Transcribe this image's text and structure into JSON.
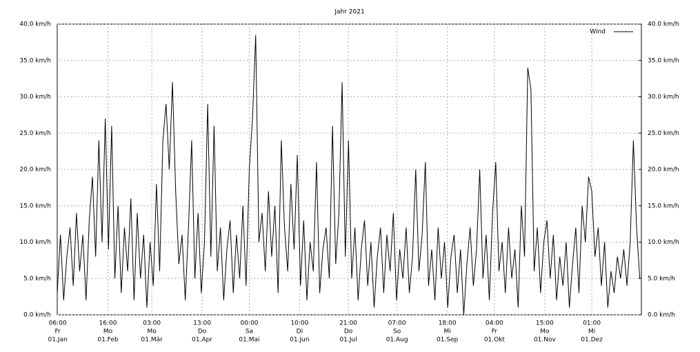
{
  "chart_data": {
    "type": "line",
    "title": "Jahr 2021",
    "series": [
      {
        "name": "Wind",
        "color": "#000000",
        "values": [
          3,
          11,
          2,
          8,
          12,
          4,
          14,
          6,
          11,
          2,
          13,
          19,
          8,
          24,
          10,
          27,
          9,
          26,
          5,
          15,
          3,
          12,
          6,
          16,
          2,
          14,
          5,
          11,
          1,
          10,
          4,
          18,
          6,
          24,
          29,
          20,
          32,
          17,
          7,
          11,
          2,
          12,
          24,
          5,
          14,
          3,
          10,
          29,
          8,
          26,
          6,
          12,
          2,
          9,
          13,
          3,
          11,
          5,
          15,
          4,
          20,
          27,
          38.5,
          10,
          14,
          6,
          17,
          8,
          15,
          3,
          24,
          12,
          6,
          18,
          9,
          22,
          4,
          13,
          2,
          10,
          6,
          21,
          3,
          9,
          12,
          5,
          26,
          7,
          14,
          32,
          8,
          24,
          5,
          12,
          2,
          9,
          13,
          4,
          10,
          1,
          8,
          12,
          3,
          11,
          6,
          14,
          2,
          9,
          5,
          12,
          3,
          8,
          20,
          6,
          11,
          21,
          4,
          9,
          2,
          12,
          5,
          10,
          1,
          8,
          11,
          3,
          9,
          0,
          7,
          12,
          4,
          9,
          20,
          5,
          11,
          2,
          14,
          21,
          6,
          10,
          3,
          12,
          5,
          9,
          1,
          15,
          8,
          34,
          31,
          6,
          12,
          3,
          10,
          13,
          5,
          11,
          2,
          8,
          4,
          10,
          1,
          7,
          12,
          3,
          15,
          10,
          19,
          17,
          8,
          12,
          4,
          10,
          1,
          6,
          3,
          8,
          5,
          9,
          4,
          10,
          24,
          12,
          5
        ]
      }
    ],
    "x": [
      0,
      2,
      4,
      6,
      8,
      10,
      12,
      14,
      16,
      18,
      20,
      22,
      24,
      26,
      28,
      30,
      32,
      34,
      36,
      38,
      40,
      42,
      44,
      46,
      48,
      50,
      52,
      54,
      56,
      58,
      60,
      62,
      64,
      66,
      68,
      70,
      72,
      74,
      76,
      78,
      80,
      82,
      84,
      86,
      88,
      90,
      92,
      94,
      96,
      98,
      100,
      102,
      104,
      106,
      108,
      110,
      112,
      114,
      116,
      118,
      120,
      122,
      124,
      126,
      128,
      130,
      132,
      134,
      136,
      138,
      140,
      142,
      144,
      146,
      148,
      150,
      152,
      154,
      156,
      158,
      160,
      162,
      164,
      166,
      168,
      170,
      172,
      174,
      176,
      178,
      180,
      182,
      184,
      186,
      188,
      190,
      192,
      194,
      196,
      198,
      200,
      202,
      204,
      206,
      208,
      210,
      212,
      214,
      216,
      218,
      220,
      222,
      224,
      226,
      228,
      230,
      232,
      234,
      236,
      238,
      240,
      242,
      244,
      246,
      248,
      250,
      252,
      254,
      256,
      258,
      260,
      262,
      264,
      266,
      268,
      270,
      272,
      274,
      276,
      278,
      280,
      282,
      284,
      286,
      288,
      290,
      292,
      294,
      296,
      298,
      300,
      302,
      304,
      306,
      308,
      310,
      312,
      314,
      316,
      318,
      320,
      322,
      324,
      326,
      328,
      330,
      332,
      334,
      336,
      338,
      340,
      342,
      344,
      346,
      348,
      350,
      352,
      354,
      356,
      358,
      360,
      362,
      364
    ],
    "xlim": [
      0,
      365
    ],
    "xticks": [
      {
        "value": 0.25,
        "label": "06:00"
      },
      {
        "value": 31.667,
        "label": "16:00"
      },
      {
        "value": 59.125,
        "label": "03:00"
      },
      {
        "value": 90.542,
        "label": "13:00"
      },
      {
        "value": 120,
        "label": "00:00"
      },
      {
        "value": 151.417,
        "label": "10:00"
      },
      {
        "value": 181.875,
        "label": "21:00"
      },
      {
        "value": 212.292,
        "label": "07:00"
      },
      {
        "value": 243.75,
        "label": "18:00"
      },
      {
        "value": 273.167,
        "label": "04:00"
      },
      {
        "value": 304.625,
        "label": "15:00"
      },
      {
        "value": 334.042,
        "label": "01:00"
      }
    ],
    "xtick_weekdays": [
      "Fr",
      "Mo",
      "Mo",
      "Do",
      "Sa",
      "Di",
      "Do",
      "So",
      "Mi",
      "Fr",
      "Mo",
      "Mi"
    ],
    "xtick_dates": [
      "01.Jan",
      "01.Feb",
      "01.Mär",
      "01.Apr",
      "01.Mai",
      "01.Jun",
      "01.Jul",
      "01.Aug",
      "01.Sep",
      "01.Okt",
      "01.Nov",
      "01.Dez"
    ],
    "ylim": [
      0,
      40
    ],
    "yticks": [
      {
        "value": 0,
        "label": "0.0 km/h"
      },
      {
        "value": 5,
        "label": "5.0 km/h"
      },
      {
        "value": 10,
        "label": "10.0 km/h"
      },
      {
        "value": 15,
        "label": "15.0 km/h"
      },
      {
        "value": 20,
        "label": "20.0 km/h"
      },
      {
        "value": 25,
        "label": "25.0 km/h"
      },
      {
        "value": 30,
        "label": "30.0 km/h"
      },
      {
        "value": 35,
        "label": "35.0 km/h"
      },
      {
        "value": 40,
        "label": "40.0 km/h"
      }
    ],
    "y2lim": [
      0,
      40
    ],
    "y2ticks": [
      {
        "value": 0,
        "label": "0.0 km/h"
      },
      {
        "value": 5,
        "label": "5.0 km/h"
      },
      {
        "value": 10,
        "label": "10.0 km/h"
      },
      {
        "value": 15,
        "label": "15.0 km/h"
      },
      {
        "value": 20,
        "label": "20.0 km/h"
      },
      {
        "value": 25,
        "label": "25.0 km/h"
      },
      {
        "value": 30,
        "label": "30.0 km/h"
      },
      {
        "value": 35,
        "label": "35.0 km/h"
      },
      {
        "value": 40,
        "label": "40.0 km/h"
      }
    ],
    "grid": true,
    "legend": "upper right"
  }
}
